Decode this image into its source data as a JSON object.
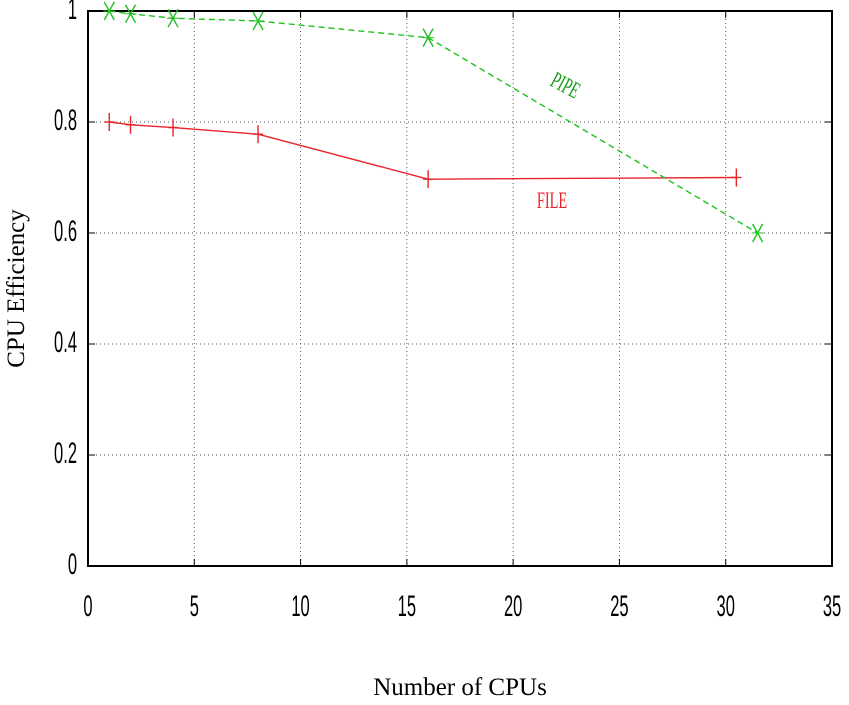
{
  "chart_data": {
    "type": "line",
    "xlabel": "Number of CPUs",
    "ylabel": "CPU Efficiency",
    "xlim": [
      0,
      35
    ],
    "ylim": [
      0,
      1
    ],
    "x_ticks": [
      "0",
      "5",
      "10",
      "15",
      "20",
      "25",
      "30",
      "35"
    ],
    "y_ticks": [
      "0",
      "0.2",
      "0.4",
      "0.6",
      "0.8",
      "1"
    ],
    "grid": true,
    "series": [
      {
        "name": "FILE",
        "color": "#e8242b",
        "line_style": "solid",
        "marker": "plus",
        "x": [
          1,
          2,
          4,
          8,
          16,
          30.5
        ],
        "y": [
          0.8,
          0.795,
          0.79,
          0.778,
          0.697,
          0.7
        ]
      },
      {
        "name": "PIPE",
        "color": "#1ec21e",
        "line_style": "dashed",
        "marker": "x",
        "x": [
          1,
          2,
          4,
          8,
          16,
          31.5
        ],
        "y": [
          1.0,
          0.995,
          0.987,
          0.982,
          0.952,
          0.6
        ]
      }
    ]
  }
}
